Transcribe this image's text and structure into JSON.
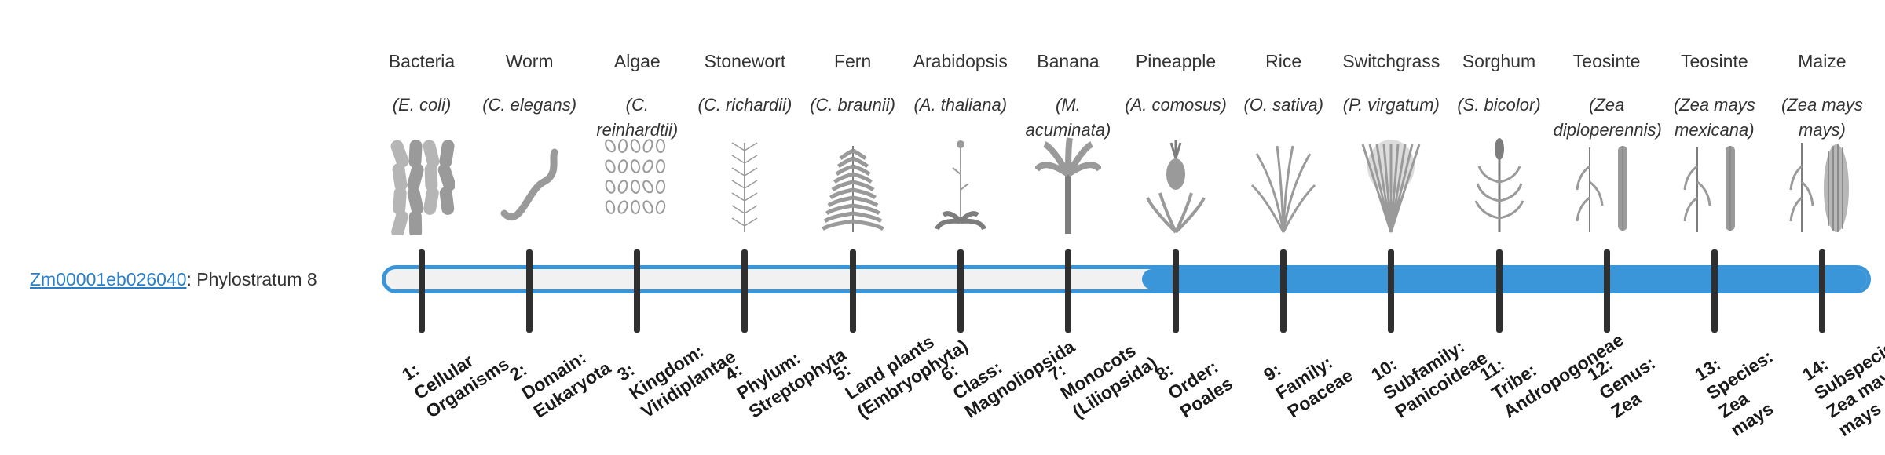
{
  "gene": {
    "id": "Zm00001eb026040",
    "separator": ":",
    "label": "Phylostratum 8"
  },
  "colors": {
    "accent": "#3a96d9",
    "tick": "#2f2f2f",
    "track_empty": "#f1f1f1"
  },
  "progress": {
    "active_stratum": 8,
    "total_strata": 14
  },
  "strata": [
    {
      "common": "Bacteria",
      "scientific": "(E. coli)",
      "rank": [
        "1:",
        "Cellular",
        "Organisms"
      ],
      "icon": "bacteria-icon"
    },
    {
      "common": "Worm",
      "scientific": "(C. elegans)",
      "rank": [
        "2:",
        "Domain:",
        "Eukaryota"
      ],
      "icon": "worm-icon"
    },
    {
      "common": "Algae",
      "scientific": "(C. reinhardtii)",
      "rank": [
        "3:",
        "Kingdom:",
        "Viridiplantae"
      ],
      "icon": "algae-icon"
    },
    {
      "common": "Stonewort",
      "scientific": "(C. richardii)",
      "rank": [
        "4:",
        "Phylum:",
        "Streptophyta"
      ],
      "icon": "stonewort-icon"
    },
    {
      "common": "Fern",
      "scientific": "(C. braunii)",
      "rank": [
        "5:",
        "Land plants",
        "(Embryophyta)"
      ],
      "icon": "fern-icon"
    },
    {
      "common": "Arabidopsis",
      "scientific": "(A. thaliana)",
      "rank": [
        "6:",
        "Class:",
        "Magnoliopsida"
      ],
      "icon": "arabidopsis-icon"
    },
    {
      "common": "Banana",
      "scientific": "(M. acuminata)",
      "rank": [
        "7:",
        "Monocots",
        "(Liliopsida)"
      ],
      "icon": "banana-icon"
    },
    {
      "common": "Pineapple",
      "scientific": "(A. comosus)",
      "rank": [
        "8:",
        "Order:",
        "Poales"
      ],
      "icon": "pineapple-icon"
    },
    {
      "common": "Rice",
      "scientific": "(O. sativa)",
      "rank": [
        "9:",
        "Family:",
        "Poaceae"
      ],
      "icon": "rice-icon"
    },
    {
      "common": "Switchgrass",
      "scientific": "(P. virgatum)",
      "rank": [
        "10:",
        "Subfamily:",
        "Panicoideae"
      ],
      "icon": "switchgrass-icon"
    },
    {
      "common": "Sorghum",
      "scientific": "(S. bicolor)",
      "rank": [
        "11:",
        "Tribe:",
        "Andropogoneae"
      ],
      "icon": "sorghum-icon"
    },
    {
      "common": "Teosinte",
      "scientific": "(Zea diploperennis)",
      "rank": [
        "12:",
        "Genus:",
        "Zea"
      ],
      "icon": "teosinte-icon"
    },
    {
      "common": "Teosinte",
      "scientific": "(Zea mays mexicana)",
      "rank": [
        "13:",
        "Species:",
        "Zea",
        "mays"
      ],
      "icon": "teosinte-icon"
    },
    {
      "common": "Maize",
      "scientific": "(Zea mays mays)",
      "rank": [
        "14:",
        "Subspecies:",
        "Zea mays",
        "mays"
      ],
      "icon": "maize-icon"
    }
  ]
}
